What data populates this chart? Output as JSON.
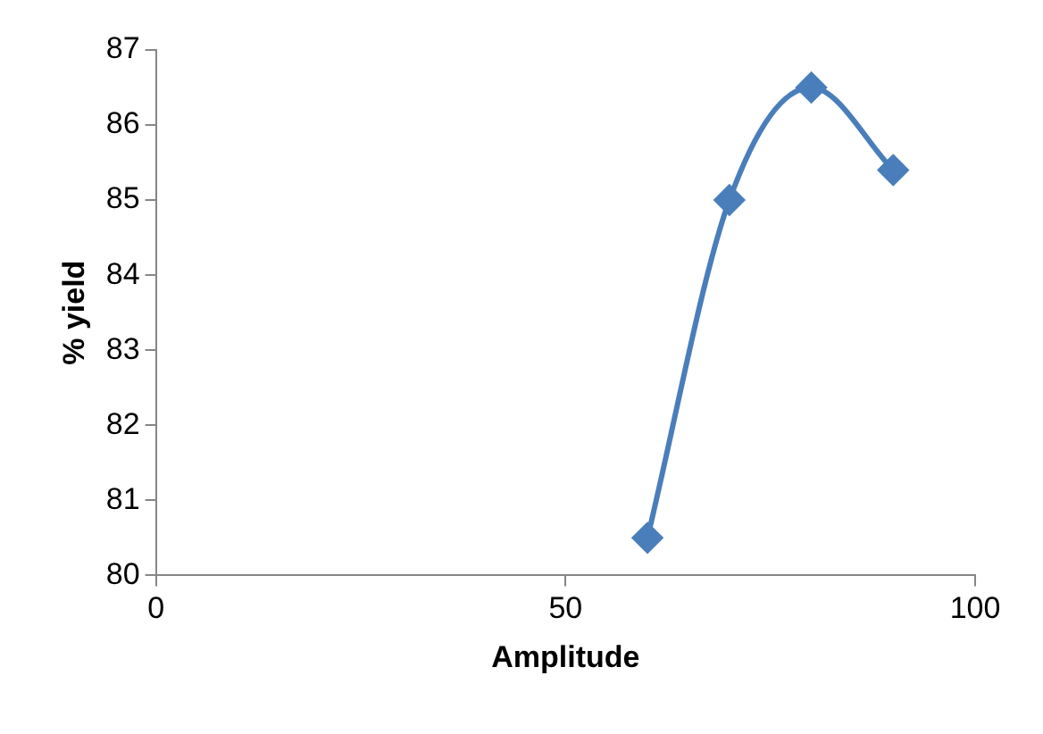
{
  "chart_data": {
    "type": "line",
    "xlabel": "Amplitude",
    "ylabel": "% yield",
    "x": [
      60,
      70,
      80,
      90
    ],
    "series": [
      {
        "color": "#4a7ebb",
        "values": [
          80.5,
          85.0,
          86.5,
          85.4
        ]
      }
    ],
    "xlim": [
      0,
      100
    ],
    "xticks": [
      0,
      50,
      100
    ],
    "ylim": [
      80,
      87
    ],
    "yticks": [
      80,
      81,
      82,
      83,
      84,
      85,
      86,
      87
    ],
    "grid": false,
    "legend": false,
    "marker": "diamond",
    "line_style": "solid"
  }
}
